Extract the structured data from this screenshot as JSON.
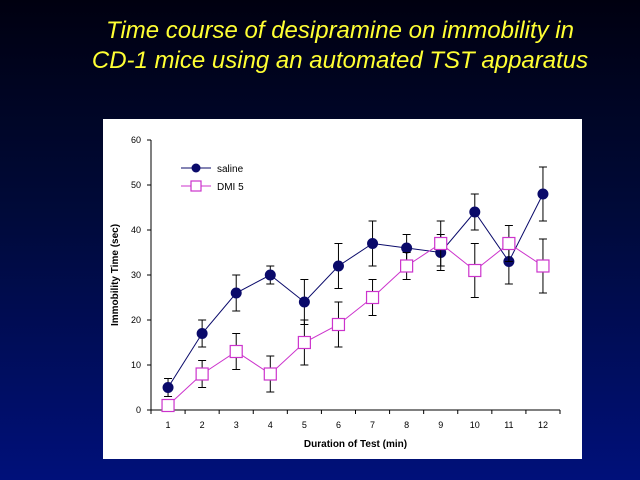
{
  "slide": {
    "title_line1": "Time course of desipramine on immobility in",
    "title_line2": "CD-1 mice using an automated TST apparatus"
  },
  "chart_data": {
    "type": "line",
    "xlabel": "Duration of Test (min)",
    "ylabel": "Immobility Time (sec)",
    "x": [
      1,
      2,
      3,
      4,
      5,
      6,
      7,
      8,
      9,
      10,
      11,
      12
    ],
    "ylim": [
      0,
      60
    ],
    "yticks": [
      0,
      10,
      20,
      30,
      40,
      50,
      60
    ],
    "grid": false,
    "legend_position": "top-left",
    "series": [
      {
        "name": "saline",
        "color": "#0a0a6a",
        "marker": "filled-circle",
        "values": [
          5,
          17,
          26,
          30,
          24,
          32,
          37,
          36,
          35,
          44,
          33,
          48
        ],
        "errors": [
          2,
          3,
          4,
          2,
          5,
          5,
          5,
          3,
          4,
          4,
          5,
          6
        ]
      },
      {
        "name": "DMI 5",
        "color": "#cc33cc",
        "marker": "open-square",
        "values": [
          1,
          8,
          13,
          8,
          15,
          19,
          25,
          32,
          37,
          31,
          37,
          32
        ],
        "errors": [
          0,
          3,
          4,
          4,
          5,
          5,
          4,
          3,
          5,
          6,
          4,
          6
        ]
      }
    ]
  }
}
